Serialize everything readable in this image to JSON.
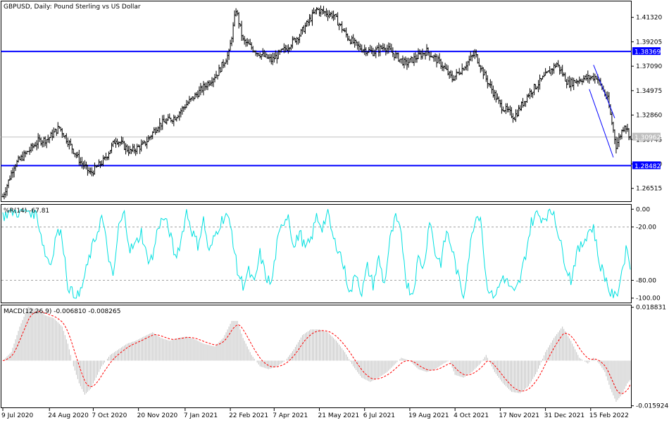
{
  "chart_data": [
    {
      "type": "bar",
      "style": "ohlc",
      "title": "GBPUSD, Daily:  Pound Sterling vs US Dollar",
      "ylim": [
        1.254,
        1.427
      ],
      "y_ticks": [
        "1.41320",
        "1.39205",
        "1.37090",
        "1.34975",
        "1.32860",
        "1.30745",
        "1.28630",
        "1.26515"
      ],
      "y_tick_values": [
        1.4132,
        1.39205,
        1.3709,
        1.34975,
        1.3286,
        1.30745,
        1.2863,
        1.26515
      ],
      "x_ticks": [
        "9 Jul 2020",
        "24 Aug 2020",
        "7 Oct 2020",
        "20 Nov 2020",
        "7 Jan 2021",
        "22 Feb 2021",
        "7 Apr 2021",
        "21 May 2021",
        "6 Jul 2021",
        "19 Aug 2021",
        "4 Oct 2021",
        "17 Nov 2021",
        "31 Dec 2021",
        "15 Feb 2022"
      ],
      "bar_count": 445,
      "x_tick_bar_index": [
        0,
        33,
        64,
        96,
        129,
        161,
        192,
        224,
        256,
        288,
        320,
        352,
        384,
        416
      ],
      "price_path": [
        [
          0,
          1.258
        ],
        [
          8,
          1.285
        ],
        [
          25,
          1.306
        ],
        [
          32,
          1.308
        ],
        [
          40,
          1.318
        ],
        [
          48,
          1.302
        ],
        [
          55,
          1.288
        ],
        [
          62,
          1.278
        ],
        [
          72,
          1.29
        ],
        [
          80,
          1.308
        ],
        [
          90,
          1.297
        ],
        [
          100,
          1.303
        ],
        [
          110,
          1.32
        ],
        [
          122,
          1.327
        ],
        [
          130,
          1.338
        ],
        [
          140,
          1.35
        ],
        [
          152,
          1.365
        ],
        [
          160,
          1.382
        ],
        [
          165,
          1.42
        ],
        [
          170,
          1.393
        ],
        [
          180,
          1.383
        ],
        [
          190,
          1.376
        ],
        [
          200,
          1.386
        ],
        [
          210,
          1.398
        ],
        [
          222,
          1.42
        ],
        [
          234,
          1.415
        ],
        [
          244,
          1.396
        ],
        [
          252,
          1.387
        ],
        [
          262,
          1.383
        ],
        [
          270,
          1.388
        ],
        [
          285,
          1.373
        ],
        [
          300,
          1.384
        ],
        [
          310,
          1.373
        ],
        [
          318,
          1.36
        ],
        [
          326,
          1.37
        ],
        [
          334,
          1.382
        ],
        [
          342,
          1.36
        ],
        [
          352,
          1.337
        ],
        [
          362,
          1.327
        ],
        [
          372,
          1.347
        ],
        [
          382,
          1.36
        ],
        [
          392,
          1.373
        ],
        [
          400,
          1.356
        ],
        [
          410,
          1.36
        ],
        [
          420,
          1.362
        ],
        [
          428,
          1.342
        ],
        [
          434,
          1.302
        ],
        [
          440,
          1.321
        ],
        [
          444,
          1.3096
        ]
      ],
      "lines": [
        {
          "kind": "horizontal",
          "value": 1.38369,
          "label": "1.38369",
          "color": "#0000ff"
        },
        {
          "kind": "horizontal",
          "value": 1.28482,
          "label": "1.28482",
          "color": "#0000ff"
        },
        {
          "kind": "current-price",
          "value": 1.30962,
          "label": "1.30962",
          "color": "#c0c0c0"
        },
        {
          "kind": "trendline",
          "from": [
            418,
            1.372
          ],
          "to": [
            433,
            1.326
          ],
          "color": "#0000ff"
        },
        {
          "kind": "trendline",
          "from": [
            415,
            1.351
          ],
          "to": [
            432,
            1.292
          ],
          "color": "#0000ff"
        }
      ],
      "colors": {
        "bars": "#000000",
        "levels": "#0000ff",
        "current": "#c0c0c0",
        "background": "#ffffff"
      }
    },
    {
      "type": "line",
      "indicator": "%R",
      "label": "%R(14) -67.81",
      "ylim": [
        -105,
        5
      ],
      "y_ticks": [
        "0.00",
        "-20.00",
        "-80.00",
        "-100.00"
      ],
      "y_tick_values": [
        0,
        -20,
        -80,
        -100
      ],
      "levels": [
        -20,
        -80
      ],
      "color": "#00e0e0",
      "last_value": -67.81,
      "values_path": [
        [
          0,
          -8
        ],
        [
          6,
          -2
        ],
        [
          12,
          -4
        ],
        [
          18,
          -1
        ],
        [
          24,
          -6
        ],
        [
          30,
          -50
        ],
        [
          34,
          -62
        ],
        [
          38,
          -25
        ],
        [
          42,
          -30
        ],
        [
          46,
          -85
        ],
        [
          50,
          -97
        ],
        [
          54,
          -98
        ],
        [
          58,
          -75
        ],
        [
          62,
          -50
        ],
        [
          66,
          -30
        ],
        [
          70,
          -8
        ],
        [
          74,
          -45
        ],
        [
          78,
          -80
        ],
        [
          82,
          -20
        ],
        [
          86,
          -5
        ],
        [
          90,
          -45
        ],
        [
          94,
          -40
        ],
        [
          98,
          -25
        ],
        [
          102,
          -55
        ],
        [
          106,
          -55
        ],
        [
          110,
          -18
        ],
        [
          114,
          -10
        ],
        [
          118,
          -25
        ],
        [
          122,
          -55
        ],
        [
          126,
          -35
        ],
        [
          130,
          -2
        ],
        [
          134,
          -25
        ],
        [
          138,
          -40
        ],
        [
          142,
          -12
        ],
        [
          146,
          -50
        ],
        [
          150,
          -30
        ],
        [
          154,
          -15
        ],
        [
          158,
          -5
        ],
        [
          162,
          -25
        ],
        [
          166,
          -70
        ],
        [
          170,
          -85
        ],
        [
          174,
          -70
        ],
        [
          178,
          -85
        ],
        [
          182,
          -50
        ],
        [
          186,
          -75
        ],
        [
          190,
          -85
        ],
        [
          194,
          -40
        ],
        [
          198,
          -15
        ],
        [
          202,
          -5
        ],
        [
          206,
          -45
        ],
        [
          210,
          -25
        ],
        [
          214,
          -45
        ],
        [
          218,
          -35
        ],
        [
          222,
          -8
        ],
        [
          226,
          -20
        ],
        [
          230,
          -5
        ],
        [
          234,
          -35
        ],
        [
          238,
          -45
        ],
        [
          242,
          -70
        ],
        [
          246,
          -95
        ],
        [
          250,
          -70
        ],
        [
          254,
          -95
        ],
        [
          258,
          -65
        ],
        [
          262,
          -85
        ],
        [
          266,
          -55
        ],
        [
          270,
          -85
        ],
        [
          274,
          -35
        ],
        [
          278,
          -10
        ],
        [
          282,
          -30
        ],
        [
          286,
          -85
        ],
        [
          290,
          -95
        ],
        [
          294,
          -55
        ],
        [
          298,
          -65
        ],
        [
          302,
          -10
        ],
        [
          306,
          -50
        ],
        [
          310,
          -60
        ],
        [
          314,
          -25
        ],
        [
          318,
          -45
        ],
        [
          322,
          -75
        ],
        [
          326,
          -98
        ],
        [
          330,
          -50
        ],
        [
          334,
          -10
        ],
        [
          338,
          -5
        ],
        [
          342,
          -80
        ],
        [
          346,
          -98
        ],
        [
          350,
          -92
        ],
        [
          354,
          -75
        ],
        [
          358,
          -85
        ],
        [
          362,
          -96
        ],
        [
          366,
          -80
        ],
        [
          370,
          -50
        ],
        [
          374,
          -15
        ],
        [
          378,
          -5
        ],
        [
          382,
          -10
        ],
        [
          386,
          -5
        ],
        [
          390,
          -2
        ],
        [
          394,
          -35
        ],
        [
          398,
          -60
        ],
        [
          402,
          -80
        ],
        [
          406,
          -50
        ],
        [
          410,
          -40
        ],
        [
          414,
          -25
        ],
        [
          418,
          -20
        ],
        [
          422,
          -60
        ],
        [
          426,
          -75
        ],
        [
          430,
          -95
        ],
        [
          434,
          -100
        ],
        [
          438,
          -70
        ],
        [
          442,
          -40
        ],
        [
          444,
          -67.81
        ]
      ]
    },
    {
      "type": "bar",
      "indicator": "MACD",
      "label": "MACD(12,26,9) -0.006810 -0.008265",
      "ylim": [
        -0.0165,
        0.0195
      ],
      "y_ticks": [
        "0.018831",
        "-0.015924"
      ],
      "y_tick_values": [
        0.018831,
        -0.015924
      ],
      "last_macd": -0.00681,
      "last_signal": -0.008265,
      "histogram_color": "#c0c0c0",
      "signal_color": "#ff0000",
      "macd_path": [
        [
          0,
          0.0
        ],
        [
          6,
          0.003
        ],
        [
          12,
          0.012
        ],
        [
          18,
          0.019
        ],
        [
          24,
          0.018
        ],
        [
          30,
          0.016
        ],
        [
          36,
          0.015
        ],
        [
          42,
          0.012
        ],
        [
          46,
          0.006
        ],
        [
          50,
          -0.002
        ],
        [
          54,
          -0.008
        ],
        [
          58,
          -0.012
        ],
        [
          62,
          -0.01
        ],
        [
          66,
          -0.006
        ],
        [
          70,
          -0.002
        ],
        [
          76,
          0.002
        ],
        [
          82,
          0.004
        ],
        [
          88,
          0.006
        ],
        [
          94,
          0.007
        ],
        [
          100,
          0.0085
        ],
        [
          106,
          0.01
        ],
        [
          112,
          0.008
        ],
        [
          118,
          0.007
        ],
        [
          124,
          0.008
        ],
        [
          130,
          0.0085
        ],
        [
          136,
          0.0075
        ],
        [
          142,
          0.006
        ],
        [
          150,
          0.005
        ],
        [
          156,
          0.008
        ],
        [
          162,
          0.014
        ],
        [
          166,
          0.014
        ],
        [
          170,
          0.008
        ],
        [
          176,
          0.002
        ],
        [
          182,
          -0.002
        ],
        [
          188,
          -0.003
        ],
        [
          194,
          -0.002
        ],
        [
          200,
          0.0
        ],
        [
          206,
          0.004
        ],
        [
          212,
          0.009
        ],
        [
          218,
          0.011
        ],
        [
          224,
          0.011
        ],
        [
          230,
          0.01
        ],
        [
          236,
          0.007
        ],
        [
          242,
          0.003
        ],
        [
          248,
          -0.002
        ],
        [
          254,
          -0.006
        ],
        [
          260,
          -0.0075
        ],
        [
          266,
          -0.006
        ],
        [
          272,
          -0.004
        ],
        [
          278,
          -0.001
        ],
        [
          282,
          0.001
        ],
        [
          288,
          0.0
        ],
        [
          294,
          -0.003
        ],
        [
          300,
          -0.004
        ],
        [
          306,
          -0.003
        ],
        [
          312,
          -0.001
        ],
        [
          316,
          0.0
        ],
        [
          320,
          -0.005
        ],
        [
          326,
          -0.006
        ],
        [
          332,
          -0.004
        ],
        [
          338,
          -0.001
        ],
        [
          342,
          0.002
        ],
        [
          348,
          -0.004
        ],
        [
          354,
          -0.008
        ],
        [
          360,
          -0.011
        ],
        [
          366,
          -0.0115
        ],
        [
          372,
          -0.009
        ],
        [
          378,
          -0.004
        ],
        [
          384,
          0.003
        ],
        [
          390,
          0.008
        ],
        [
          396,
          0.012
        ],
        [
          402,
          0.007
        ],
        [
          408,
          0.001
        ],
        [
          414,
          -0.001
        ],
        [
          418,
          0.001
        ],
        [
          422,
          -0.001
        ],
        [
          426,
          -0.004
        ],
        [
          430,
          -0.01
        ],
        [
          434,
          -0.0145
        ],
        [
          438,
          -0.012
        ],
        [
          442,
          -0.008
        ],
        [
          444,
          -0.0068
        ]
      ]
    }
  ]
}
